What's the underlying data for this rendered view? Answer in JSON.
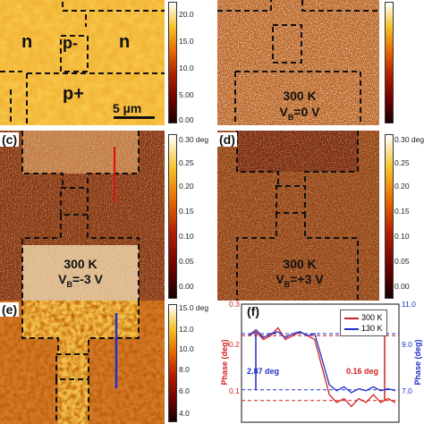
{
  "panels": {
    "a": {
      "regions": [
        "n",
        "p-",
        "n",
        "p+"
      ],
      "scalebar": "5 µm",
      "colorbar_ticks": [
        "20.0",
        "15.0",
        "10.0",
        "5.00",
        "0.00"
      ]
    },
    "b": {
      "temperature": "300 K",
      "bias": "V",
      "bias_sub": "B",
      "bias_value": "=0 V",
      "colorbar_ticks": [
        "",
        "",
        "",
        "",
        ""
      ]
    },
    "c": {
      "label": "(c)",
      "temperature": "300 K",
      "bias": "V",
      "bias_sub": "B",
      "bias_value": "=-3 V",
      "colorbar_ticks": [
        "0.30 deg",
        "0.25",
        "0.20",
        "0.15",
        "0.10",
        "0.05",
        "0.00"
      ]
    },
    "d": {
      "label": "(d)",
      "temperature": "300 K",
      "bias": "V",
      "bias_sub": "B",
      "bias_value": "=+3 V",
      "colorbar_ticks": [
        "0.30 deg",
        "0.25",
        "0.20",
        "0.15",
        "0.10",
        "0.05",
        "0.00"
      ]
    },
    "e": {
      "label": "(e)",
      "colorbar_ticks": [
        "15.0 deg",
        "12.0",
        "10.0",
        "8.0",
        "6.0",
        "4.0"
      ]
    },
    "f": {
      "label": "(f)",
      "left_ylabel": "Phase (deg)",
      "right_ylabel": "Phase (deg)",
      "left_ticks": [
        "0.3",
        "0.2",
        "0.1"
      ],
      "right_ticks": [
        "11.0",
        "9.0",
        "7.0"
      ],
      "legend": [
        "300 K",
        "130 K"
      ],
      "annotation_blue": "2.87 deg",
      "annotation_red": "0.16 deg"
    }
  },
  "colors": {
    "red": "#d42020",
    "blue": "#2030c8",
    "dash": "#111111"
  },
  "chart_data": {
    "type": "line",
    "series": [
      {
        "name": "300 K",
        "x": [
          0,
          1,
          2,
          3,
          4,
          5,
          6,
          7,
          8,
          9,
          10,
          11,
          12,
          13,
          14,
          15,
          16,
          17,
          18,
          19,
          20
        ],
        "values": [
          0.22,
          0.23,
          0.21,
          0.22,
          0.24,
          0.21,
          0.22,
          0.23,
          0.22,
          0.21,
          0.14,
          0.07,
          0.05,
          0.06,
          0.04,
          0.06,
          0.05,
          0.07,
          0.05,
          0.06,
          0.05
        ]
      },
      {
        "name": "130 K",
        "x": [
          0,
          1,
          2,
          3,
          4,
          5,
          6,
          7,
          8,
          9,
          10,
          11,
          12,
          13,
          14,
          15,
          16,
          17,
          18,
          19,
          20
        ],
        "values": [
          9.4,
          9.7,
          9.3,
          9.5,
          9.6,
          9.3,
          9.5,
          9.6,
          9.4,
          9.5,
          8.2,
          6.9,
          6.6,
          6.8,
          6.5,
          6.7,
          6.6,
          6.8,
          6.6,
          6.7,
          6.6
        ]
      }
    ],
    "ylabel": "Phase (deg)",
    "ylim_left": [
      0.0,
      0.3
    ],
    "ylim_right": [
      5.0,
      11.0
    ]
  }
}
